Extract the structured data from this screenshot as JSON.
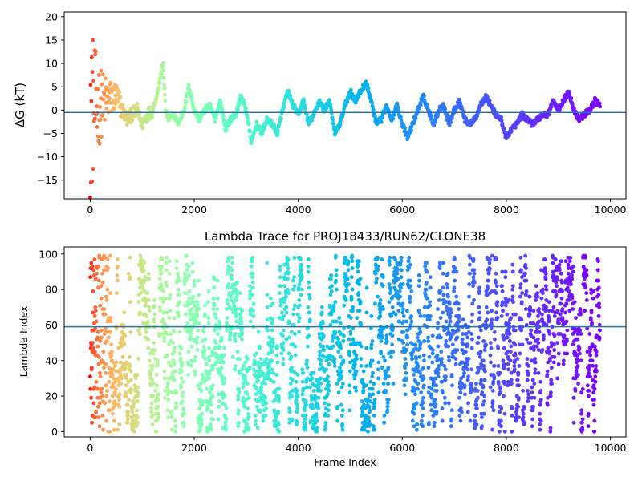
{
  "chart_data": [
    {
      "type": "scatter",
      "title": "",
      "xlabel": "",
      "ylabel": "ΔG (kT)",
      "xlim": [
        -500,
        10300
      ],
      "ylim": [
        -19,
        21
      ],
      "xticks": [
        "0",
        "2000",
        "4000",
        "6000",
        "8000",
        "10000"
      ],
      "xtick_values": [
        0,
        2000,
        4000,
        6000,
        8000,
        10000
      ],
      "yticks": [
        "20",
        "15",
        "10",
        "5",
        "0",
        "−5",
        "−10",
        "−15"
      ],
      "ytick_values": [
        20,
        15,
        10,
        5,
        0,
        -5,
        -10,
        -15
      ],
      "hline": -0.5,
      "hline_color": "#1f77b4",
      "colormap": "rainbow",
      "color_by": "frame index (red at start, violet at end)",
      "x_max": 9800,
      "trace_keypoints": [
        [
          0,
          0
        ],
        [
          300,
          2
        ],
        [
          500,
          3
        ],
        [
          700,
          -2
        ],
        [
          900,
          0
        ],
        [
          1000,
          -3
        ],
        [
          1100,
          -1
        ],
        [
          1200,
          0
        ],
        [
          1300,
          4
        ],
        [
          1400,
          10
        ],
        [
          1450,
          0
        ],
        [
          1500,
          -2
        ],
        [
          1600,
          -1
        ],
        [
          1700,
          -3
        ],
        [
          1800,
          0
        ],
        [
          1900,
          5
        ],
        [
          2000,
          0
        ],
        [
          2100,
          -2
        ],
        [
          2200,
          0
        ],
        [
          2300,
          1
        ],
        [
          2400,
          -2
        ],
        [
          2500,
          2
        ],
        [
          2600,
          -4
        ],
        [
          2700,
          -2
        ],
        [
          2800,
          -1
        ],
        [
          2900,
          3
        ],
        [
          3000,
          0
        ],
        [
          3100,
          -7
        ],
        [
          3200,
          -3
        ],
        [
          3300,
          -5
        ],
        [
          3400,
          -2
        ],
        [
          3500,
          -3
        ],
        [
          3600,
          -5
        ],
        [
          3700,
          0
        ],
        [
          3800,
          4
        ],
        [
          3900,
          1
        ],
        [
          4000,
          -1
        ],
        [
          4100,
          2
        ],
        [
          4200,
          -3
        ],
        [
          4300,
          -1
        ],
        [
          4400,
          2
        ],
        [
          4500,
          0
        ],
        [
          4600,
          2
        ],
        [
          4700,
          -5
        ],
        [
          4800,
          -3
        ],
        [
          4900,
          1
        ],
        [
          5000,
          4
        ],
        [
          5100,
          2
        ],
        [
          5200,
          4
        ],
        [
          5300,
          6
        ],
        [
          5400,
          2
        ],
        [
          5500,
          -3
        ],
        [
          5600,
          -2
        ],
        [
          5700,
          1
        ],
        [
          5800,
          -2
        ],
        [
          5900,
          1
        ],
        [
          6000,
          -3
        ],
        [
          6100,
          -6
        ],
        [
          6200,
          -3
        ],
        [
          6300,
          0
        ],
        [
          6400,
          3
        ],
        [
          6500,
          0
        ],
        [
          6600,
          -3
        ],
        [
          6700,
          0
        ],
        [
          6800,
          1
        ],
        [
          6900,
          -3
        ],
        [
          7000,
          0
        ],
        [
          7100,
          2
        ],
        [
          7200,
          -2
        ],
        [
          7300,
          -3
        ],
        [
          7400,
          -2
        ],
        [
          7500,
          1
        ],
        [
          7600,
          3
        ],
        [
          7700,
          1
        ],
        [
          7800,
          -1
        ],
        [
          7900,
          -2
        ],
        [
          8000,
          -6
        ],
        [
          8100,
          -4
        ],
        [
          8200,
          -3
        ],
        [
          8300,
          -1
        ],
        [
          8400,
          -2
        ],
        [
          8500,
          -3
        ],
        [
          8600,
          -2
        ],
        [
          8700,
          -1
        ],
        [
          8800,
          -1
        ],
        [
          8900,
          2
        ],
        [
          9000,
          0
        ],
        [
          9100,
          2
        ],
        [
          9200,
          4
        ],
        [
          9300,
          0
        ],
        [
          9400,
          -2
        ],
        [
          9500,
          -1
        ],
        [
          9600,
          0
        ],
        [
          9700,
          2
        ],
        [
          9800,
          1
        ]
      ]
    },
    {
      "type": "scatter",
      "title": "Lambda Trace for PROJ18433/RUN62/CLONE38",
      "xlabel": "Frame Index",
      "ylabel": "Lambda Index",
      "xlim": [
        -500,
        10300
      ],
      "ylim": [
        -3,
        104
      ],
      "xticks": [
        "0",
        "2000",
        "4000",
        "6000",
        "8000",
        "10000"
      ],
      "xtick_values": [
        0,
        2000,
        4000,
        6000,
        8000,
        10000
      ],
      "yticks": [
        "100",
        "80",
        "60",
        "40",
        "20",
        "0"
      ],
      "ytick_values": [
        100,
        80,
        60,
        40,
        20,
        0
      ],
      "hline": 59,
      "hline_color": "#1f77b4",
      "colormap": "rainbow",
      "color_by": "frame index (red at start, violet at end)",
      "x_max": 9800,
      "lambda_range": [
        0,
        99
      ]
    }
  ]
}
